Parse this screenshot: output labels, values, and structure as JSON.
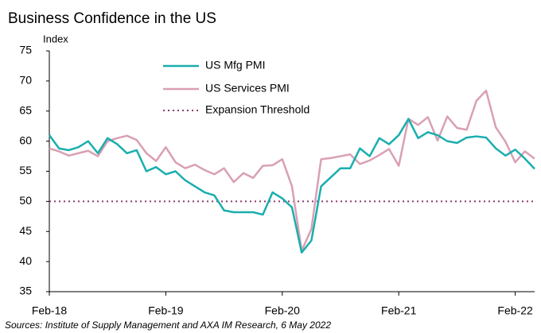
{
  "chart_data": {
    "type": "line",
    "title": "Business Confidence in the US",
    "y_label": "Index",
    "source": "Sources: Institute of Supply Management and AXA IM Research, 6 May 2022",
    "categories": [
      "Feb-18",
      null,
      null,
      null,
      null,
      null,
      null,
      null,
      null,
      null,
      null,
      null,
      "Feb-19",
      null,
      null,
      null,
      null,
      null,
      null,
      null,
      null,
      null,
      null,
      null,
      "Feb-20",
      null,
      null,
      null,
      null,
      null,
      null,
      null,
      null,
      null,
      null,
      null,
      "Feb-21",
      null,
      null,
      null,
      null,
      null,
      null,
      null,
      null,
      null,
      null,
      null,
      "Feb-22",
      null,
      null
    ],
    "series": [
      {
        "name": "US Mfg PMI",
        "color": "#1aaeae",
        "values": [
          61,
          58.8,
          58.5,
          59,
          60,
          58,
          60.5,
          59.5,
          58,
          58.5,
          55,
          55.7,
          54.5,
          55,
          53.5,
          52.5,
          51.5,
          51,
          48.5,
          48.2,
          48.2,
          48.2,
          47.8,
          51.5,
          50.5,
          49,
          41.5,
          43.5,
          52.5,
          54,
          55.5,
          55.5,
          58.8,
          57.5,
          60.5,
          59.5,
          61,
          63.7,
          60.5,
          61.5,
          61,
          60,
          59.7,
          60.6,
          60.8,
          60.6,
          58.8,
          57.6,
          58.6,
          57.1,
          55.4
        ]
      },
      {
        "name": "US Services PMI",
        "color": "#d9a0b4",
        "values": [
          58.8,
          58.3,
          57.6,
          58,
          58.4,
          57.5,
          60,
          60.5,
          60.9,
          60.2,
          58,
          56.7,
          59,
          56.5,
          55.5,
          56.1,
          55.2,
          54.5,
          55.5,
          53.2,
          54.7,
          53.9,
          55.9,
          56.0,
          57,
          52.5,
          41.8,
          45.4,
          57,
          57.2,
          57.5,
          57.8,
          56.2,
          56.8,
          57.7,
          58.7,
          55.9,
          63.7,
          62.7,
          64,
          60.1,
          64.1,
          62.2,
          61.9,
          66.7,
          68.4,
          62.3,
          59.9,
          56.5,
          58.3,
          57.1
        ]
      }
    ],
    "threshold": {
      "name": "Expansion Threshold",
      "value": 50,
      "color": "#8b3a6a"
    },
    "ylim": [
      35,
      75
    ],
    "yticks": [
      35,
      40,
      45,
      50,
      55,
      60,
      65,
      70,
      75
    ]
  }
}
